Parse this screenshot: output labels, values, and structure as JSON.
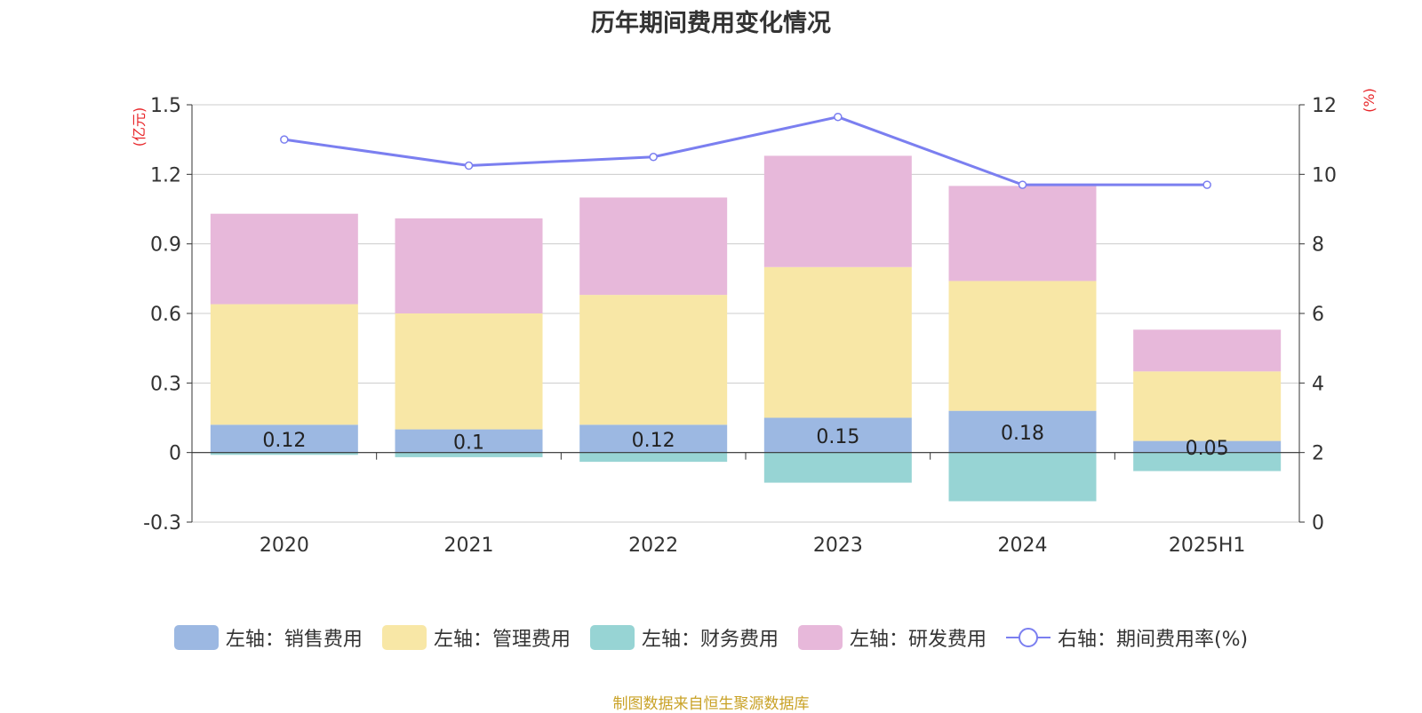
{
  "chart_data": {
    "type": "bar",
    "title": "历年期间费用变化情况",
    "categories": [
      "2020",
      "2021",
      "2022",
      "2023",
      "2024",
      "2025H1"
    ],
    "left_axis": {
      "unit": "(亿元)",
      "ylim": [
        -0.3,
        1.5
      ],
      "ticks": [
        "1.5",
        "1.2",
        "0.9",
        "0.6",
        "0.3",
        "0",
        "-0.3"
      ],
      "tick_values": [
        1.5,
        1.2,
        0.9,
        0.6,
        0.3,
        0,
        -0.3
      ]
    },
    "right_axis": {
      "unit": "(%)",
      "ylim": [
        0,
        12
      ],
      "ticks": [
        "12",
        "10",
        "8",
        "6",
        "4",
        "2",
        "0"
      ],
      "tick_values": [
        12,
        10,
        8,
        6,
        4,
        2,
        0
      ]
    },
    "stacked": true,
    "series": [
      {
        "name": "左轴：销售费用",
        "type": "bar",
        "axis": "left",
        "color": "#9cb8e2",
        "values": [
          0.12,
          0.1,
          0.12,
          0.15,
          0.18,
          0.05
        ],
        "labels": [
          "0.12",
          "0.1",
          "0.12",
          "0.15",
          "0.18",
          "0.05"
        ]
      },
      {
        "name": "左轴：管理费用",
        "type": "bar",
        "axis": "left",
        "color": "#f8e7a6",
        "values": [
          0.52,
          0.5,
          0.56,
          0.65,
          0.56,
          0.3
        ]
      },
      {
        "name": "左轴：财务费用",
        "type": "bar",
        "axis": "left",
        "color": "#97d4d4",
        "values": [
          -0.01,
          -0.02,
          -0.04,
          -0.13,
          -0.21,
          -0.08
        ]
      },
      {
        "name": "左轴：研发费用",
        "type": "bar",
        "axis": "left",
        "color": "#e7b8da",
        "values": [
          0.39,
          0.41,
          0.42,
          0.48,
          0.41,
          0.18
        ]
      },
      {
        "name": "右轴：期间费用率(%)",
        "type": "line",
        "axis": "right",
        "color": "#7b7ff0",
        "values": [
          11.0,
          10.25,
          10.5,
          11.65,
          9.7,
          9.7
        ]
      }
    ],
    "grid": true,
    "legend_position": "bottom"
  },
  "footer": {
    "source": "制图数据来自恒生聚源数据库"
  }
}
